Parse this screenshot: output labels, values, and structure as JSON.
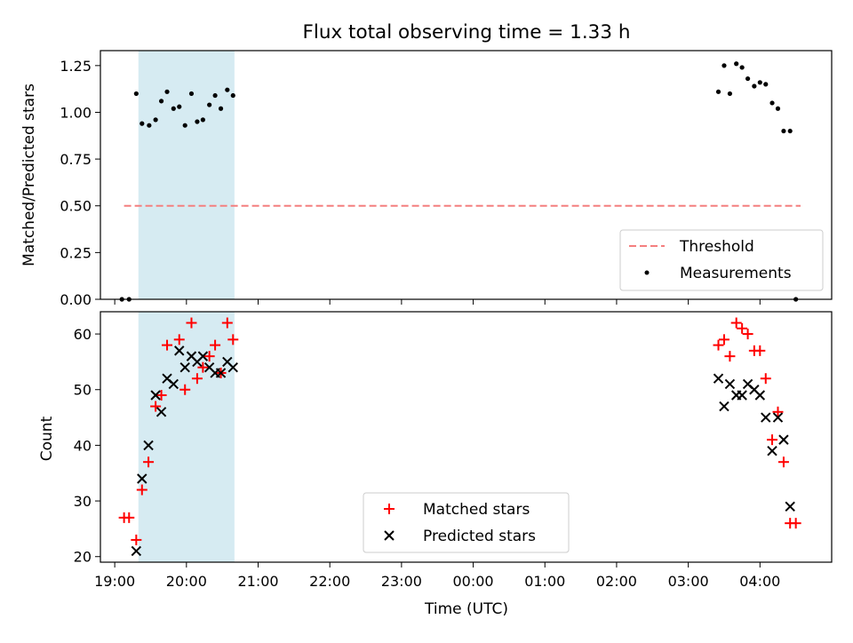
{
  "chart_data": [
    {
      "type": "scatter",
      "title": "Flux total observing time = 1.33 h",
      "xlabel": "",
      "ylabel": "Matched/Predicted stars",
      "ylim": [
        0,
        1.33
      ],
      "xlim": [
        18.8,
        29.0
      ],
      "yticks": [
        0.0,
        0.25,
        0.5,
        0.75,
        1.0,
        1.25
      ],
      "ytick_labels": [
        "0.00",
        "0.25",
        "0.50",
        "0.75",
        "1.00",
        "1.25"
      ],
      "highlight_span": [
        19.33,
        20.67
      ],
      "threshold": {
        "name": "Threshold",
        "y": 0.5,
        "x_range": [
          19.13,
          29.0
        ],
        "color": "#f47f7f"
      },
      "series": [
        {
          "name": "Measurements",
          "color": "#000000",
          "points": [
            [
              19.1,
              0.0
            ],
            [
              19.2,
              0.0
            ],
            [
              19.3,
              1.1
            ],
            [
              19.38,
              0.94
            ],
            [
              19.48,
              0.93
            ],
            [
              19.57,
              0.96
            ],
            [
              19.65,
              1.06
            ],
            [
              19.73,
              1.11
            ],
            [
              19.82,
              1.02
            ],
            [
              19.9,
              1.03
            ],
            [
              19.98,
              0.93
            ],
            [
              20.07,
              1.1
            ],
            [
              20.15,
              0.95
            ],
            [
              20.23,
              0.96
            ],
            [
              20.32,
              1.04
            ],
            [
              20.4,
              1.09
            ],
            [
              20.48,
              1.02
            ],
            [
              20.57,
              1.12
            ],
            [
              20.65,
              1.09
            ],
            [
              27.42,
              1.11
            ],
            [
              27.5,
              1.25
            ],
            [
              27.58,
              1.1
            ],
            [
              27.67,
              1.26
            ],
            [
              27.75,
              1.24
            ],
            [
              27.83,
              1.18
            ],
            [
              27.92,
              1.14
            ],
            [
              28.0,
              1.16
            ],
            [
              28.08,
              1.15
            ],
            [
              28.17,
              1.05
            ],
            [
              28.25,
              1.02
            ],
            [
              28.33,
              0.9
            ],
            [
              28.42,
              0.9
            ],
            [
              28.5,
              0.0
            ]
          ]
        }
      ],
      "legend": {
        "position": "lower-right",
        "entries": [
          "Threshold",
          "Measurements"
        ]
      }
    },
    {
      "type": "scatter",
      "title": "",
      "xlabel": "Time (UTC)",
      "ylabel": "Count",
      "ylim": [
        19,
        64
      ],
      "xlim": [
        18.8,
        29.0
      ],
      "yticks": [
        20,
        30,
        40,
        50,
        60
      ],
      "ytick_labels": [
        "20",
        "30",
        "40",
        "50",
        "60"
      ],
      "xticks": [
        19,
        20,
        21,
        22,
        23,
        24,
        25,
        26,
        27,
        28
      ],
      "xtick_labels": [
        "19:00",
        "20:00",
        "21:00",
        "22:00",
        "23:00",
        "00:00",
        "01:00",
        "02:00",
        "03:00",
        "04:00"
      ],
      "highlight_span": [
        19.33,
        20.67
      ],
      "series": [
        {
          "name": "Matched stars",
          "marker": "plus",
          "color": "#ff0000",
          "points": [
            [
              19.13,
              27
            ],
            [
              19.2,
              27
            ],
            [
              19.3,
              23
            ],
            [
              19.38,
              32
            ],
            [
              19.47,
              37
            ],
            [
              19.57,
              47
            ],
            [
              19.65,
              49
            ],
            [
              19.73,
              58
            ],
            [
              19.9,
              59
            ],
            [
              19.98,
              50
            ],
            [
              20.07,
              62
            ],
            [
              20.15,
              52
            ],
            [
              20.23,
              54
            ],
            [
              20.32,
              56
            ],
            [
              20.4,
              58
            ],
            [
              20.48,
              53
            ],
            [
              20.57,
              62
            ],
            [
              20.65,
              59
            ],
            [
              27.42,
              58
            ],
            [
              27.5,
              59
            ],
            [
              27.58,
              56
            ],
            [
              27.67,
              62
            ],
            [
              27.75,
              61
            ],
            [
              27.83,
              60
            ],
            [
              27.92,
              57
            ],
            [
              28.0,
              57
            ],
            [
              28.08,
              52
            ],
            [
              28.17,
              41
            ],
            [
              28.25,
              46
            ],
            [
              28.33,
              37
            ],
            [
              28.42,
              26
            ],
            [
              28.5,
              26
            ]
          ]
        },
        {
          "name": "Predicted stars",
          "marker": "x",
          "color": "#000000",
          "points": [
            [
              19.3,
              21
            ],
            [
              19.38,
              34
            ],
            [
              19.47,
              40
            ],
            [
              19.57,
              49
            ],
            [
              19.65,
              46
            ],
            [
              19.73,
              52
            ],
            [
              19.82,
              51
            ],
            [
              19.9,
              57
            ],
            [
              19.98,
              54
            ],
            [
              20.07,
              56
            ],
            [
              20.15,
              55
            ],
            [
              20.23,
              56
            ],
            [
              20.32,
              54
            ],
            [
              20.4,
              53
            ],
            [
              20.48,
              53
            ],
            [
              20.57,
              55
            ],
            [
              20.65,
              54
            ],
            [
              27.42,
              52
            ],
            [
              27.5,
              47
            ],
            [
              27.58,
              51
            ],
            [
              27.67,
              49
            ],
            [
              27.75,
              49
            ],
            [
              27.83,
              51
            ],
            [
              27.92,
              50
            ],
            [
              28.0,
              49
            ],
            [
              28.08,
              45
            ],
            [
              28.17,
              39
            ],
            [
              28.25,
              45
            ],
            [
              28.33,
              41
            ],
            [
              28.42,
              29
            ]
          ]
        }
      ],
      "legend": {
        "position": "lower-center",
        "entries": [
          "Matched stars",
          "Predicted stars"
        ]
      }
    }
  ]
}
